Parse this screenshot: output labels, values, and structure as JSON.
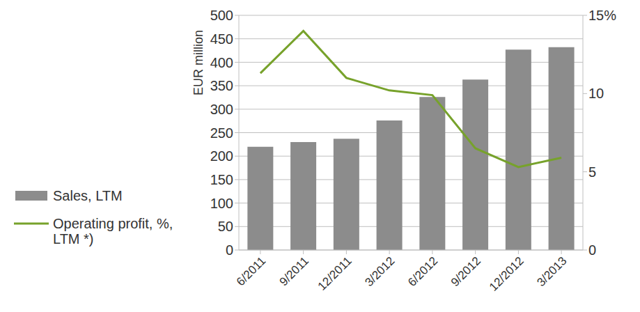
{
  "chart_data": {
    "type": "bar",
    "categories": [
      "6/2011",
      "9/2011",
      "12/2011",
      "3/2012",
      "6/2012",
      "9/2012",
      "12/2012",
      "3/2013"
    ],
    "y_label": "EUR million",
    "series": [
      {
        "name": "Sales, LTM",
        "type": "bar",
        "color": "#8c8c8c",
        "values": [
          220,
          230,
          237,
          276,
          326,
          363,
          427,
          432
        ]
      },
      {
        "name": "Operating profit, %, LTM *)",
        "type": "line",
        "color": "#77a22b",
        "axis": "y2",
        "values": [
          11.3,
          14.0,
          11.0,
          10.2,
          9.9,
          6.5,
          5.3,
          5.9
        ]
      }
    ],
    "ylim": [
      0,
      500
    ],
    "yticks": [
      0,
      50,
      100,
      150,
      200,
      250,
      300,
      350,
      400,
      450,
      500
    ],
    "y2lim": [
      0,
      15
    ],
    "y2ticks": [
      0,
      5,
      10,
      {
        "value": 15,
        "label": "15%"
      }
    ],
    "grid": true,
    "legend": "left"
  }
}
